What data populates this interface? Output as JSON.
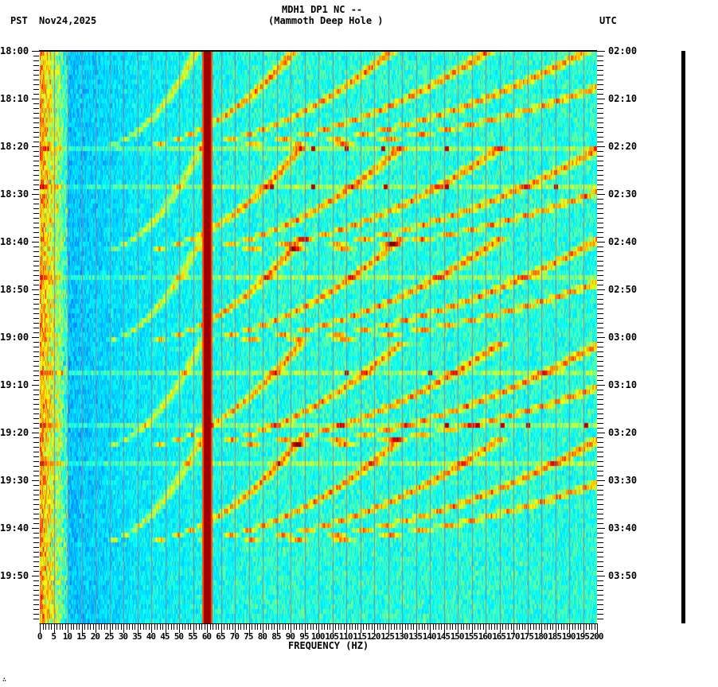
{
  "header": {
    "station_line": "MDH1 DP1 NC --",
    "site_line": "(Mammoth Deep Hole )",
    "left_timezone": "PST",
    "date": "Nov24,2025",
    "right_timezone": "UTC"
  },
  "footer": {
    "corner_mark": "∴"
  },
  "chart_data": {
    "type": "heatmap",
    "title": "MDH1 DP1 NC -- (Mammoth Deep Hole )",
    "subtitle": "Spectrogram, Nov24,2025",
    "xlabel": "FREQUENCY (HZ)",
    "ylabel_left": "PST",
    "ylabel_right": "UTC",
    "xlim": [
      0,
      200
    ],
    "x_ticks": [
      0,
      5,
      10,
      15,
      20,
      25,
      30,
      35,
      40,
      45,
      50,
      55,
      60,
      65,
      70,
      75,
      80,
      85,
      90,
      95,
      100,
      105,
      110,
      115,
      120,
      125,
      130,
      135,
      140,
      145,
      150,
      155,
      160,
      165,
      170,
      175,
      180,
      185,
      190,
      195,
      200
    ],
    "x_minor_tick_step": 1,
    "y_left_ticks": [
      "18:00",
      "18:10",
      "18:20",
      "18:30",
      "18:40",
      "18:50",
      "19:00",
      "19:10",
      "19:20",
      "19:30",
      "19:40",
      "19:50"
    ],
    "y_right_ticks": [
      "02:00",
      "02:10",
      "02:20",
      "02:30",
      "02:40",
      "02:50",
      "03:00",
      "03:10",
      "03:20",
      "03:30",
      "03:40",
      "03:50"
    ],
    "y_minor_tick_step_minutes": 1,
    "time_range_minutes": 120,
    "grid": {
      "vertical_every_hz": 5,
      "color": "#7f8c99"
    },
    "colormap": [
      "#0000c8",
      "#0064ff",
      "#00c8ff",
      "#00ffff",
      "#80ff80",
      "#ffff00",
      "#ff8000",
      "#ff0000",
      "#800000"
    ],
    "features": {
      "persistent_line_hz": 60,
      "low_freq_band_hz": [
        0,
        10
      ],
      "arc_cycles_start_minute": [
        20,
        42,
        61,
        83,
        103
      ],
      "arc_harmonics": 6,
      "arc_fundamental_top_hz": 58,
      "arc_fundamental_bottom_hz": 21,
      "broadband_rows_minute": [
        20,
        28,
        47,
        67,
        78,
        86
      ],
      "spikes": [
        {
          "minute": 20,
          "hz": [
            98,
            110,
            123,
            146
          ]
        },
        {
          "minute": 28,
          "hz": [
            83,
            98,
            124,
            146,
            185
          ]
        },
        {
          "minute": 67,
          "hz": [
            110,
            140
          ]
        },
        {
          "minute": 78,
          "hz": [
            146,
            157,
            166,
            175,
            196
          ]
        }
      ]
    }
  }
}
